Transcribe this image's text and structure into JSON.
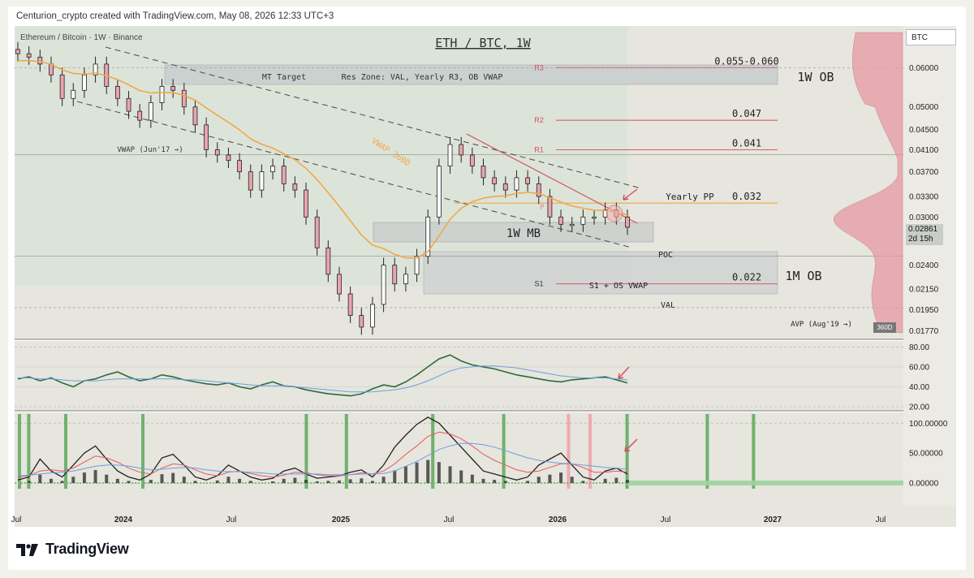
{
  "header": {
    "caption": "Centurion_crypto created with TradingView.com, May 08, 2026 12:33 UTC+3",
    "symbol_line": "Ethereum / Bitcoin · 1W · Binance",
    "chart_title": "ETH / BTC, 1W",
    "ticker": "BTC"
  },
  "price_tag": {
    "price": "0.02861",
    "countdown": "2d 15h"
  },
  "vwap_tag": "360D",
  "brand": "TradingView",
  "colors": {
    "up_candle": "#ffffff",
    "down_candle": "#e9a4b0",
    "candle_outline": "#222222",
    "vwap": "#f0a848",
    "resistance": "#d64a5a",
    "rsi": "#2f6b3a",
    "rsi_ma": "#6aa0e0",
    "green_bar": "#5aa85a",
    "red_bar": "#f0a0a8"
  },
  "chart_data": [
    {
      "type": "candlestick",
      "title": "ETH / BTC, 1W",
      "x_ticks": [
        "Jul",
        "2024",
        "Jul",
        "2025",
        "Jul",
        "2026",
        "Jul",
        "2027",
        "Jul"
      ],
      "y_ticks": [
        0.06,
        0.05,
        0.045,
        0.041,
        0.037,
        0.033,
        0.03,
        0.024,
        0.0215,
        0.0195,
        0.0177
      ],
      "y_tick_labels": [
        "0.06000",
        "0.05000",
        "0.04500",
        "0.04100",
        "0.03700",
        "0.03300",
        "0.03000",
        "0.02400",
        "0.02150",
        "0.01950",
        "0.01770"
      ],
      "ylim": [
        0.0172,
        0.066
      ],
      "y_scale": "log",
      "last_price": 0.02861,
      "close_series": [
        0.064,
        0.063,
        0.061,
        0.058,
        0.052,
        0.054,
        0.058,
        0.061,
        0.055,
        0.052,
        0.049,
        0.047,
        0.051,
        0.055,
        0.054,
        0.05,
        0.046,
        0.041,
        0.04,
        0.039,
        0.037,
        0.034,
        0.037,
        0.038,
        0.035,
        0.034,
        0.03,
        0.026,
        0.023,
        0.021,
        0.019,
        0.018,
        0.02,
        0.024,
        0.022,
        0.023,
        0.025,
        0.03,
        0.038,
        0.042,
        0.04,
        0.038,
        0.036,
        0.035,
        0.034,
        0.036,
        0.035,
        0.033,
        0.03,
        0.029,
        0.029,
        0.03,
        0.03,
        0.031,
        0.03,
        0.02861
      ],
      "levels": [
        {
          "label": "0.055-0.060",
          "tag": "R3",
          "value": 0.06
        },
        {
          "label": "0.047",
          "tag": "R2",
          "value": 0.047
        },
        {
          "label": "0.041",
          "tag": "R1",
          "value": 0.041
        },
        {
          "label": "0.032",
          "tag": "Yearly PP",
          "value": 0.032
        },
        {
          "label": "0.022",
          "tag": "S1",
          "value": 0.022
        }
      ],
      "annotations": [
        "MT Target",
        "Res Zone: VAL, Yearly R3, OB VWAP",
        "1W OB",
        "VWAP (Jun'17 →)",
        "VWAP 360D",
        "P",
        "1W MB",
        "POC",
        "1M OB",
        "S1 + OS VWAP",
        "VAL",
        "AVP (Aug'19 →)"
      ]
    },
    {
      "type": "line",
      "name": "RSI",
      "y_ticks": [
        80,
        60,
        40,
        20
      ],
      "y_tick_labels": [
        "80.00",
        "60.00",
        "40.00",
        "20.00"
      ],
      "ylim": [
        16,
        86
      ],
      "series": [
        {
          "values": [
            48,
            50,
            46,
            49,
            44,
            40,
            46,
            48,
            52,
            55,
            50,
            46,
            48,
            52,
            50,
            47,
            45,
            43,
            42,
            44,
            40,
            38,
            42,
            45,
            41,
            40,
            37,
            35,
            33,
            32,
            31,
            33,
            38,
            42,
            40,
            45,
            52,
            60,
            68,
            72,
            66,
            62,
            60,
            58,
            55,
            52,
            50,
            48,
            46,
            45,
            47,
            48,
            49,
            50,
            47,
            44
          ]
        },
        {
          "values": [
            49,
            49,
            48,
            48,
            47,
            46,
            46,
            46,
            47,
            48,
            48,
            48,
            48,
            48,
            48,
            47,
            47,
            46,
            45,
            44,
            43,
            42,
            41,
            41,
            41,
            40,
            39,
            38,
            37,
            36,
            35,
            35,
            35,
            36,
            37,
            39,
            42,
            46,
            51,
            56,
            59,
            60,
            61,
            61,
            60,
            59,
            57,
            55,
            53,
            51,
            50,
            49,
            49,
            49,
            48,
            47
          ]
        }
      ]
    },
    {
      "type": "line",
      "name": "Oscillator",
      "y_ticks": [
        100,
        50,
        0
      ],
      "y_tick_labels": [
        "100.00000",
        "50.00000",
        "0.00000"
      ],
      "ylim": [
        -38,
        118
      ],
      "series": [
        {
          "values": [
            5,
            10,
            40,
            20,
            10,
            30,
            50,
            62,
            40,
            20,
            10,
            5,
            15,
            42,
            48,
            30,
            10,
            5,
            12,
            30,
            20,
            10,
            5,
            8,
            20,
            25,
            15,
            8,
            10,
            12,
            18,
            22,
            10,
            30,
            60,
            80,
            98,
            110,
            100,
            80,
            60,
            40,
            20,
            15,
            10,
            5,
            10,
            30,
            40,
            50,
            30,
            10,
            5,
            20,
            25,
            15
          ]
        },
        {
          "values": [
            10,
            12,
            20,
            22,
            20,
            25,
            35,
            45,
            42,
            35,
            25,
            18,
            15,
            25,
            32,
            30,
            22,
            15,
            12,
            18,
            20,
            16,
            12,
            10,
            13,
            18,
            17,
            14,
            12,
            12,
            14,
            17,
            15,
            20,
            32,
            48,
            62,
            78,
            85,
            82,
            74,
            62,
            48,
            38,
            30,
            22,
            18,
            20,
            26,
            32,
            32,
            26,
            18,
            18,
            20,
            18
          ]
        },
        {
          "values": [
            12,
            13,
            15,
            17,
            18,
            20,
            24,
            28,
            30,
            30,
            28,
            25,
            22,
            23,
            25,
            26,
            25,
            22,
            20,
            19,
            19,
            18,
            17,
            15,
            15,
            15,
            15,
            15,
            14,
            14,
            14,
            15,
            15,
            16,
            20,
            28,
            36,
            46,
            56,
            62,
            66,
            66,
            64,
            60,
            54,
            48,
            42,
            38,
            35,
            33,
            32,
            30,
            28,
            26,
            25,
            23
          ]
        }
      ]
    }
  ]
}
